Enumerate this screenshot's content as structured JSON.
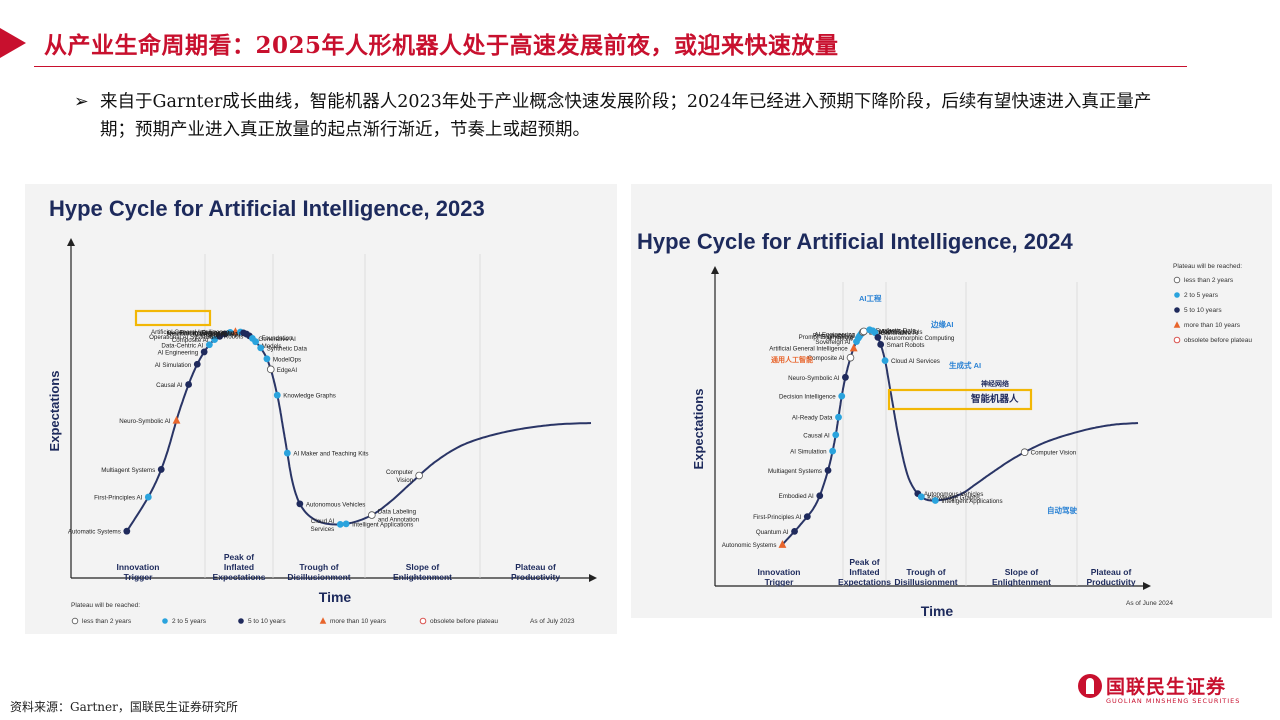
{
  "header": {
    "title": "从产业生命周期看：2025年人形机器人处于高速发展前夜，或迎来快速放量",
    "accent_color": "#c8102e"
  },
  "bullet": {
    "text": "来自于Garnter成长曲线，智能机器人2023年处于产业概念快速发展阶段；2024年已经进入预期下降阶段，后续有望快速进入真正量产期；预期产业进入真正放量的起点渐行渐近，节奏上或超预期。"
  },
  "footer": {
    "source": "资料来源：Gartner，国联民生证券研究所",
    "logo_cn": "国联民生证券",
    "logo_en": "GUOLIAN MINSHENG SECURITIES"
  },
  "colors": {
    "curve": "#2a3566",
    "two_to_five": "#2aa3dd",
    "five_to_ten": "#1f2a5c",
    "more_than_ten": "#e8652c",
    "highlight": "#f2b705",
    "title_navy": "#1d2a5c"
  },
  "chart_data": [
    {
      "type": "scatter",
      "title": "Hype Cycle for Artificial Intelligence, 2023",
      "xlabel": "Time",
      "ylabel": "Expectations",
      "phases": [
        "Innovation Trigger",
        "Peak of Inflated Expectations",
        "Trough of Disillusionment",
        "Slope of Enlightenment",
        "Plateau of Productivity"
      ],
      "legend": {
        "heading": "Plateau will be reached:",
        "items": [
          "less than 2 years",
          "2 to 5 years",
          "5 to 10 years",
          "more than 10 years",
          "obsolete before plateau"
        ],
        "placement": "bottom"
      },
      "asof": "As of July 2023",
      "highlighted": "Smart Robots",
      "points": [
        {
          "name": "Automatic Systems",
          "phase": "Innovation Trigger",
          "plateau": "5 to 10 years"
        },
        {
          "name": "First-Principles AI",
          "phase": "Innovation Trigger",
          "plateau": "2 to 5 years"
        },
        {
          "name": "Multiagent Systems",
          "phase": "Innovation Trigger",
          "plateau": "5 to 10 years"
        },
        {
          "name": "Neuro-Symbolic AI",
          "phase": "Innovation Trigger",
          "plateau": "more than 10 years"
        },
        {
          "name": "Causal AI",
          "phase": "Innovation Trigger",
          "plateau": "5 to 10 years"
        },
        {
          "name": "AI Simulation",
          "phase": "Innovation Trigger",
          "plateau": "5 to 10 years"
        },
        {
          "name": "AI Engineering",
          "phase": "Innovation Trigger",
          "plateau": "5 to 10 years"
        },
        {
          "name": "Data-Centric AI",
          "phase": "Innovation Trigger",
          "plateau": "2 to 5 years"
        },
        {
          "name": "Composite AI",
          "phase": "Innovation Trigger",
          "plateau": "2 to 5 years"
        },
        {
          "name": "Operational AI Systems",
          "phase": "Innovation Trigger",
          "plateau": "5 to 10 years"
        },
        {
          "name": "AI TRiSM",
          "phase": "Innovation Trigger",
          "plateau": "5 to 10 years"
        },
        {
          "name": "Decision Intelligence",
          "phase": "Innovation Trigger",
          "plateau": "2 to 5 years"
        },
        {
          "name": "Artificial General Intelligence",
          "phase": "Innovation Trigger",
          "plateau": "more than 10 years"
        },
        {
          "name": "Prompt Engineering",
          "phase": "Peak of Inflated Expectations",
          "plateau": "2 to 5 years"
        },
        {
          "name": "Neuromorphic Computing",
          "phase": "Peak of Inflated Expectations",
          "plateau": "5 to 10 years"
        },
        {
          "name": "Responsible AI",
          "phase": "Peak of Inflated Expectations",
          "plateau": "5 to 10 years"
        },
        {
          "name": "Smart Robots",
          "phase": "Peak of Inflated Expectations",
          "plateau": "5 to 10 years"
        },
        {
          "name": "Generative AI",
          "phase": "Peak of Inflated Expectations",
          "plateau": "2 to 5 years"
        },
        {
          "name": "Foundation Models",
          "phase": "Peak of Inflated Expectations",
          "plateau": "2 to 5 years"
        },
        {
          "name": "Synthetic Data",
          "phase": "Trough of Disillusionment",
          "plateau": "2 to 5 years"
        },
        {
          "name": "ModelOps",
          "phase": "Trough of Disillusionment",
          "plateau": "2 to 5 years"
        },
        {
          "name": "EdgeAI",
          "phase": "Trough of Disillusionment",
          "plateau": "less than 2 years"
        },
        {
          "name": "Knowledge Graphs",
          "phase": "Trough of Disillusionment",
          "plateau": "2 to 5 years"
        },
        {
          "name": "AI Maker and Teaching Kits",
          "phase": "Trough of Disillusionment",
          "plateau": "2 to 5 years"
        },
        {
          "name": "Autonomous Vehicles",
          "phase": "Trough of Disillusionment",
          "plateau": "5 to 10 years"
        },
        {
          "name": "Intelligent Applications",
          "phase": "Slope of Enlightenment",
          "plateau": "2 to 5 years"
        },
        {
          "name": "Cloud AI Services",
          "phase": "Slope of Enlightenment",
          "plateau": "2 to 5 years"
        },
        {
          "name": "Data Labeling and Annotation",
          "phase": "Slope of Enlightenment",
          "plateau": "less than 2 years"
        },
        {
          "name": "Computer Vision",
          "phase": "Plateau of Productivity",
          "plateau": "less than 2 years"
        }
      ]
    },
    {
      "type": "scatter",
      "title": "Hype Cycle for Artificial Intelligence, 2024",
      "xlabel": "Time",
      "ylabel": "Expectations",
      "phases": [
        "Innovation Trigger",
        "Peak of Inflated Expectations",
        "Trough of Disillusionment",
        "Slope of Enlightenment",
        "Plateau of Productivity"
      ],
      "legend": {
        "heading": "Plateau will be reached:",
        "items": [
          "less than 2 years",
          "2 to 5 years",
          "5 to 10 years",
          "more than 10 years",
          "obsolete before plateau"
        ],
        "placement": "top-right"
      },
      "asof": "As of June 2024",
      "highlighted": "Smart Robots",
      "annotations_cn": [
        "AI工程",
        "边缘AI",
        "通用人工智能",
        "生成式 AI",
        "神经网络",
        "智能机器人",
        "自动驾驶"
      ],
      "points": [
        {
          "name": "Autonomic Systems",
          "phase": "Innovation Trigger",
          "plateau": "more than 10 years"
        },
        {
          "name": "Quantum AI",
          "phase": "Innovation Trigger",
          "plateau": "5 to 10 years"
        },
        {
          "name": "First-Principles AI",
          "phase": "Innovation Trigger",
          "plateau": "5 to 10 years"
        },
        {
          "name": "Embodied AI",
          "phase": "Innovation Trigger",
          "plateau": "5 to 10 years"
        },
        {
          "name": "Multiagent Systems",
          "phase": "Innovation Trigger",
          "plateau": "5 to 10 years"
        },
        {
          "name": "AI Simulation",
          "phase": "Innovation Trigger",
          "plateau": "2 to 5 years"
        },
        {
          "name": "Causal AI",
          "phase": "Innovation Trigger",
          "plateau": "2 to 5 years"
        },
        {
          "name": "AI-Ready Data",
          "phase": "Innovation Trigger",
          "plateau": "2 to 5 years"
        },
        {
          "name": "Decision Intelligence",
          "phase": "Innovation Trigger",
          "plateau": "2 to 5 years"
        },
        {
          "name": "Neuro-Symbolic AI",
          "phase": "Innovation Trigger",
          "plateau": "5 to 10 years"
        },
        {
          "name": "Composite AI",
          "phase": "Innovation Trigger",
          "plateau": "less than 2 years"
        },
        {
          "name": "Artificial General Intelligence",
          "phase": "Innovation Trigger",
          "plateau": "more than 10 years"
        },
        {
          "name": "Sovereign AI",
          "phase": "Peak of Inflated Expectations",
          "plateau": "2 to 5 years"
        },
        {
          "name": "AI TRiSM",
          "phase": "Peak of Inflated Expectations",
          "plateau": "2 to 5 years"
        },
        {
          "name": "Prompt Engineering",
          "phase": "Peak of Inflated Expectations",
          "plateau": "2 to 5 years"
        },
        {
          "name": "Responsible AI",
          "phase": "Peak of Inflated Expectations",
          "plateau": "2 to 5 years"
        },
        {
          "name": "AI Engineering",
          "phase": "Peak of Inflated Expectations",
          "plateau": "2 to 5 years"
        },
        {
          "name": "Edge AI",
          "phase": "Peak of Inflated Expectations",
          "plateau": "less than 2 years"
        },
        {
          "name": "Foundation Models",
          "phase": "Peak of Inflated Expectations",
          "plateau": "less than 2 years"
        },
        {
          "name": "Synthetic Data",
          "phase": "Trough of Disillusionment",
          "plateau": "2 to 5 years"
        },
        {
          "name": "ModelOps",
          "phase": "Trough of Disillusionment",
          "plateau": "2 to 5 years"
        },
        {
          "name": "Generative AI",
          "phase": "Trough of Disillusionment",
          "plateau": "2 to 5 years"
        },
        {
          "name": "Neuromorphic Computing",
          "phase": "Trough of Disillusionment",
          "plateau": "5 to 10 years"
        },
        {
          "name": "Smart Robots",
          "phase": "Trough of Disillusionment",
          "plateau": "5 to 10 years"
        },
        {
          "name": "Cloud AI Services",
          "phase": "Trough of Disillusionment",
          "plateau": "2 to 5 years"
        },
        {
          "name": "Autonomous Vehicles",
          "phase": "Slope of Enlightenment",
          "plateau": "5 to 10 years"
        },
        {
          "name": "Knowledge Graphs",
          "phase": "Slope of Enlightenment",
          "plateau": "2 to 5 years"
        },
        {
          "name": "Intelligent Applications",
          "phase": "Slope of Enlightenment",
          "plateau": "2 to 5 years"
        },
        {
          "name": "Computer Vision",
          "phase": "Plateau of Productivity",
          "plateau": "less than 2 years"
        }
      ]
    }
  ]
}
